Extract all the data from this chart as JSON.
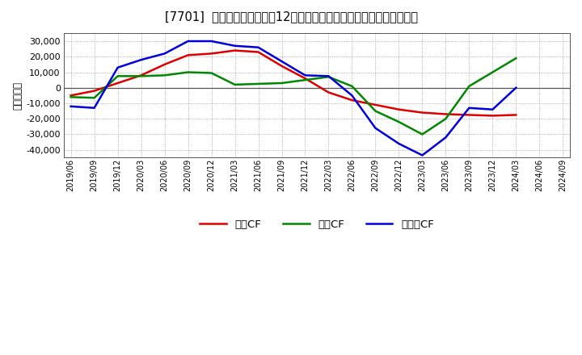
{
  "title": "[7701]  キャッシュフローの12か月移動合計の対前年同期増減額の推移",
  "ylabel": "（百万円）",
  "background_color": "#ffffff",
  "plot_bg_color": "#ffffff",
  "grid_color": "#aaaaaa",
  "xlabels": [
    "2019/06",
    "2019/09",
    "2019/12",
    "2020/03",
    "2020/06",
    "2020/09",
    "2020/12",
    "2021/03",
    "2021/06",
    "2021/09",
    "2021/12",
    "2022/03",
    "2022/06",
    "2022/09",
    "2022/12",
    "2023/03",
    "2023/06",
    "2023/09",
    "2023/12",
    "2024/03",
    "2024/06",
    "2024/09"
  ],
  "operating_cf": [
    -5000,
    -2000,
    3000,
    8000,
    15000,
    21000,
    22000,
    24000,
    23000,
    14000,
    6000,
    -3000,
    -8000,
    -11000,
    -14000,
    -16000,
    -17000,
    -17500,
    -18000,
    -17500,
    null,
    null
  ],
  "investing_cf": [
    -6000,
    -6500,
    7500,
    7500,
    8000,
    10000,
    9500,
    2000,
    2500,
    3000,
    5000,
    7000,
    1000,
    -15000,
    -22000,
    -30000,
    -20000,
    1000,
    10000,
    19000,
    null,
    null
  ],
  "free_cf": [
    -12000,
    -13000,
    13000,
    18000,
    22000,
    30000,
    30000,
    27000,
    26000,
    17000,
    8000,
    7500,
    -5000,
    -26000,
    -36000,
    -43500,
    -32000,
    -13000,
    -14000,
    0,
    null,
    null
  ],
  "operating_color": "#dd0000",
  "investing_color": "#008800",
  "free_color": "#0000dd",
  "ylim": [
    -45000,
    35000
  ],
  "yticks": [
    -40000,
    -30000,
    -20000,
    -10000,
    0,
    10000,
    20000,
    30000
  ],
  "legend_labels": [
    "営業CF",
    "投資CF",
    "フリーCF"
  ]
}
